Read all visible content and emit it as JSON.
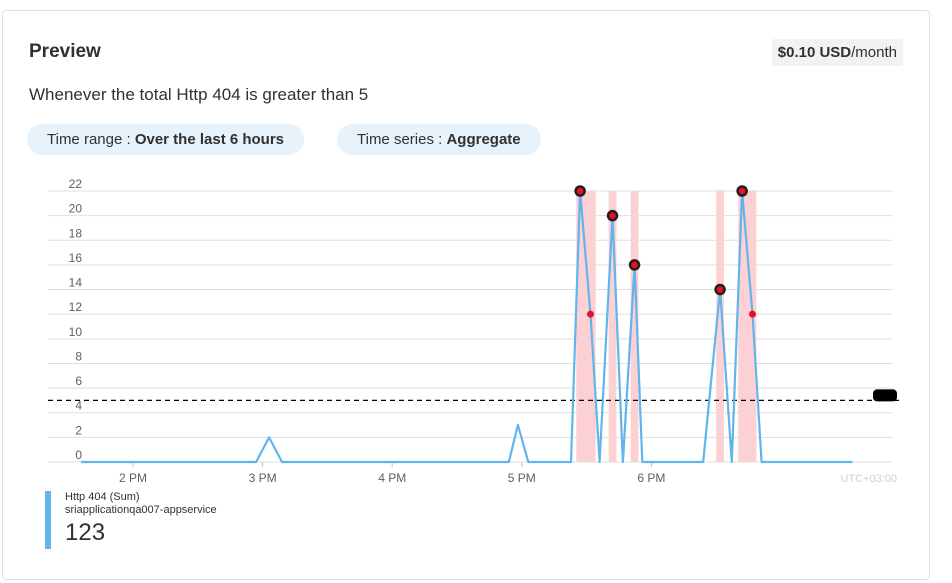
{
  "card": {
    "title": "Preview",
    "cost_amount": "$0.10 USD",
    "cost_unit": "/month",
    "condition": "Whenever the total Http 404 is greater than 5",
    "time_range_label": "Time range : ",
    "time_range_value": "Over the last 6 hours",
    "time_series_label": "Time series : ",
    "time_series_value": "Aggregate"
  },
  "legend": {
    "name": "Http 404 (Sum)",
    "resource": "sriapplicationqa007-appservice",
    "total": "123",
    "color": "#5fb5ec"
  },
  "chart_data": {
    "type": "line",
    "ylim": [
      0,
      22
    ],
    "yticks": [
      0,
      2,
      4,
      6,
      8,
      10,
      12,
      14,
      16,
      18,
      20,
      22
    ],
    "xticks": [
      {
        "label": "2 PM",
        "hour": 14
      },
      {
        "label": "3 PM",
        "hour": 15
      },
      {
        "label": "4 PM",
        "hour": 16
      },
      {
        "label": "5 PM",
        "hour": 17
      },
      {
        "label": "6 PM",
        "hour": 18
      }
    ],
    "timezone_label": "UTC+03:00",
    "threshold": 5,
    "line_color": "#5fb5ec",
    "alert_color": "#e81123",
    "alert_band_color": "#fdd0d4",
    "series": [
      {
        "name": "Http 404 (Sum)",
        "points": [
          [
            13.6,
            0
          ],
          [
            14.95,
            0
          ],
          [
            15.05,
            2
          ],
          [
            15.15,
            0
          ],
          [
            16.9,
            0
          ],
          [
            16.97,
            3
          ],
          [
            17.05,
            0
          ],
          [
            17.38,
            0
          ],
          [
            17.45,
            22
          ],
          [
            17.53,
            12
          ],
          [
            17.6,
            0
          ],
          [
            17.7,
            20
          ],
          [
            17.78,
            0
          ],
          [
            17.87,
            16
          ],
          [
            17.93,
            0
          ],
          [
            18.4,
            0
          ],
          [
            18.53,
            14
          ],
          [
            18.62,
            0
          ],
          [
            18.7,
            22
          ],
          [
            18.78,
            12
          ],
          [
            18.85,
            0
          ],
          [
            19.55,
            0
          ]
        ]
      }
    ],
    "alert_points": [
      [
        17.45,
        22
      ],
      [
        17.7,
        20
      ],
      [
        17.87,
        16
      ],
      [
        18.53,
        14
      ],
      [
        18.7,
        22
      ]
    ],
    "breach_points": [
      [
        17.53,
        12
      ],
      [
        18.78,
        12
      ]
    ],
    "alert_bands": [
      [
        17.42,
        17.57
      ],
      [
        17.67,
        17.73
      ],
      [
        17.84,
        17.9
      ],
      [
        18.5,
        18.56
      ],
      [
        18.67,
        18.81
      ]
    ]
  }
}
